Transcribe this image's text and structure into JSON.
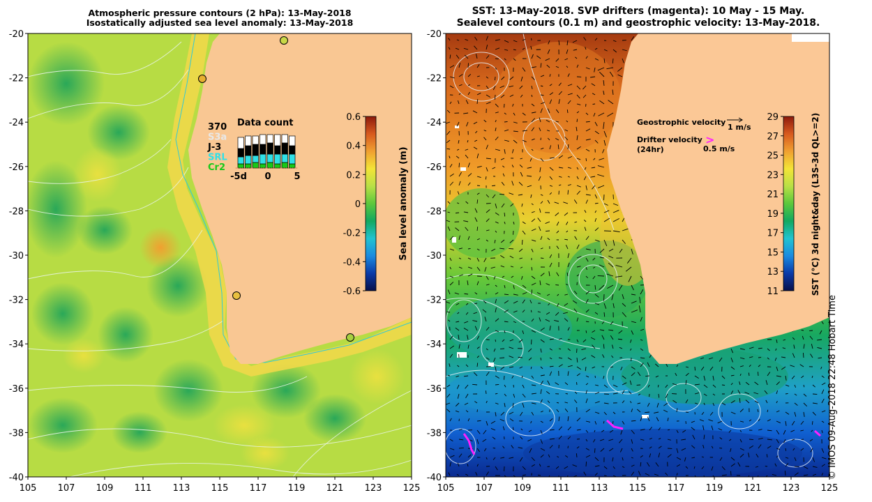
{
  "left_panel": {
    "title_line1": "Atmospheric pressure contours (2 hPa): 13-May-2018",
    "title_line2": "Isostatically adjusted sea level anomaly: 13-May-2018",
    "y_ticks": [
      "-20",
      "-22",
      "-24",
      "-26",
      "-28",
      "-30",
      "-32",
      "-34",
      "-36",
      "-38",
      "-40"
    ],
    "x_ticks": [
      "105",
      "107",
      "109",
      "111",
      "113",
      "115",
      "117",
      "119",
      "121",
      "123",
      "125"
    ],
    "colorbar": {
      "label": "Sea level anomaly (m)",
      "ticks": [
        "0.6",
        "0.4",
        "0.2",
        "0",
        "-0.2",
        "-0.4",
        "-0.6"
      ],
      "colors": [
        "#08104a",
        "#0a3aa8",
        "#1a8be0",
        "#21c3d0",
        "#12a860",
        "#5cc83c",
        "#b9e046",
        "#f3e437",
        "#f0a030",
        "#d85a1e",
        "#8c1a0c"
      ]
    },
    "data_count": {
      "title": "Data count",
      "sources": [
        {
          "label": "370",
          "color": "#000000"
        },
        {
          "label": "S3a",
          "color": "#e8e8e8"
        },
        {
          "label": "J-3",
          "color": "#000000"
        },
        {
          "label": "SRL",
          "color": "#30e0e8"
        },
        {
          "label": "Cr2",
          "color": "#18c818"
        }
      ],
      "x_ticks": [
        "-5d",
        "0",
        "5"
      ]
    }
  },
  "right_panel": {
    "title_line1": "SST: 13-May-2018. SVP drifters (magenta): 10 May - 15 May.",
    "title_line2": "Sealevel contours (0.1 m) and geostrophic velocity: 13-May-2018.",
    "y_ticks": [
      "-20",
      "-22",
      "-24",
      "-26",
      "-28",
      "-30",
      "-32",
      "-34",
      "-36",
      "-38",
      "-40"
    ],
    "x_ticks": [
      "105",
      "107",
      "109",
      "111",
      "113",
      "115",
      "117",
      "119",
      "121",
      "123",
      "125"
    ],
    "legend": {
      "geostrophic_label": "Geostrophic velocity",
      "geostrophic_scale": "1 m/s",
      "drifter_label_1": "Drifter velocity",
      "drifter_label_2": "(24hr)",
      "drifter_scale": "0.5 m/s",
      "drifter_symbol": ">"
    },
    "colorbar": {
      "label": "SST (°C) 3d night&day (L3S-3d QL>=2)",
      "ticks": [
        "29",
        "27",
        "25",
        "23",
        "21",
        "19",
        "17",
        "15",
        "13",
        "11"
      ],
      "colors": [
        "#08104a",
        "#0a3aa8",
        "#1a8be0",
        "#21c3d0",
        "#12a860",
        "#5cc83c",
        "#b9e046",
        "#f3e437",
        "#f0a030",
        "#d85a1e",
        "#8c1a0c"
      ]
    }
  },
  "credit": "© IMOS 09-Aug-2018 22:48 Hobart Time"
}
